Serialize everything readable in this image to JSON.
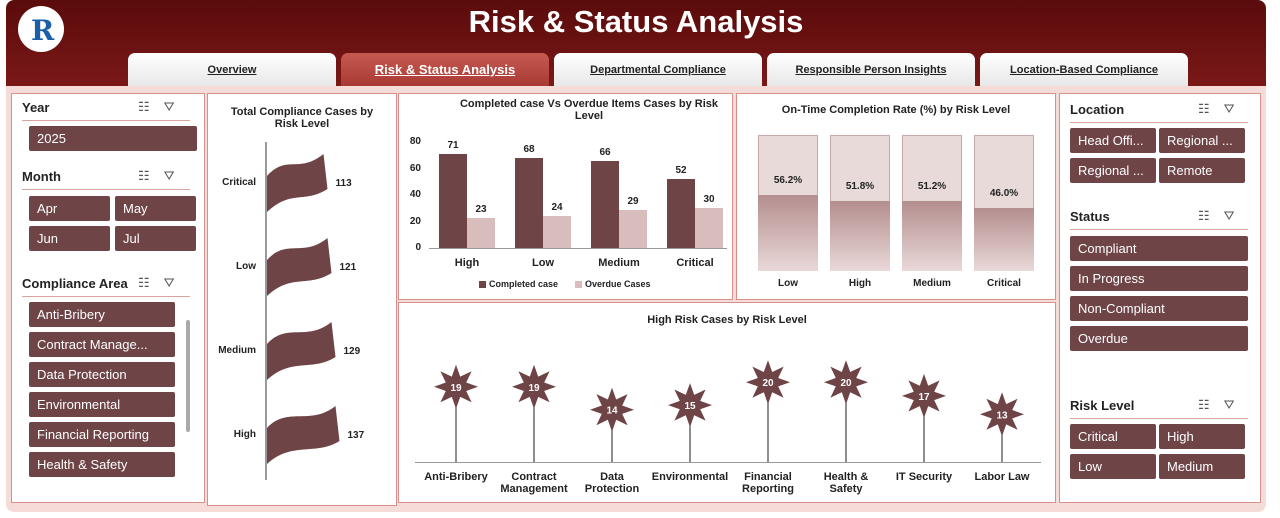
{
  "header": {
    "title": "Risk & Status Analysis",
    "logo_letter": "R"
  },
  "tabs": [
    {
      "label": "Overview",
      "active": false
    },
    {
      "label": "Risk & Status Analysis",
      "active": true
    },
    {
      "label": "Departmental Compliance",
      "active": false
    },
    {
      "label": "Responsible Person Insights",
      "active": false
    },
    {
      "label": "Location-Based Compliance",
      "active": false
    }
  ],
  "left_slicers": {
    "year": {
      "title": "Year",
      "items": [
        "2025"
      ]
    },
    "month": {
      "title": "Month",
      "items": [
        "Apr",
        "May",
        "Jun",
        "Jul"
      ]
    },
    "area": {
      "title": "Compliance Area",
      "items": [
        "Anti-Bribery",
        "Contract Manage...",
        "Data Protection",
        "Environmental",
        "Financial Reporting",
        "Health & Safety"
      ]
    }
  },
  "right_slicers": {
    "location": {
      "title": "Location",
      "items": [
        "Head Offi...",
        "Regional ...",
        "Regional ...",
        "Remote"
      ]
    },
    "status": {
      "title": "Status",
      "items": [
        "Compliant",
        "In Progress",
        "Non-Compliant",
        "Overdue"
      ]
    },
    "risk": {
      "title": "Risk Level",
      "items": [
        "Critical",
        "High",
        "Low",
        "Medium"
      ]
    }
  },
  "colors": {
    "primary": "#6e4447",
    "light": "#d9bcbc",
    "header": "#6a1212",
    "accent_tab": "#b4443c"
  },
  "chart_data": [
    {
      "id": "total_cases",
      "type": "bar",
      "title": "Total Compliance Cases by Risk Level",
      "categories": [
        "Critical",
        "Low",
        "Medium",
        "High"
      ],
      "values": [
        113,
        121,
        129,
        137
      ]
    },
    {
      "id": "completed_vs_overdue",
      "type": "bar",
      "title": "Completed case Vs Overdue Items Cases by Risk Level",
      "categories": [
        "High",
        "Low",
        "Medium",
        "Critical"
      ],
      "series": [
        {
          "name": "Completed case",
          "values": [
            71,
            68,
            66,
            52
          ]
        },
        {
          "name": "Overdue  Cases",
          "values": [
            23,
            24,
            29,
            30
          ]
        }
      ],
      "yticks": [
        "80",
        "60",
        "40",
        "20",
        "0"
      ],
      "ylim": [
        0,
        80
      ],
      "legend": "bottom"
    },
    {
      "id": "ontime_rate",
      "type": "bar",
      "title": "On-Time Completion Rate (%) by Risk Level",
      "categories": [
        "Low",
        "High",
        "Medium",
        "Critical"
      ],
      "values": [
        56.2,
        51.8,
        51.2,
        46.0
      ],
      "labels": [
        "56.2%",
        "51.8%",
        "51.2%",
        "46.0%"
      ],
      "ylim": [
        0,
        100
      ]
    },
    {
      "id": "high_risk",
      "type": "scatter",
      "title": "High Risk Cases by Risk Level",
      "categories": [
        "Anti-Bribery",
        "Contract Management",
        "Data Protection",
        "Environmental",
        "Financial Reporting",
        "Health & Safety",
        "IT Security",
        "Labor Law"
      ],
      "values": [
        19,
        19,
        14,
        15,
        20,
        20,
        17,
        13
      ]
    }
  ]
}
